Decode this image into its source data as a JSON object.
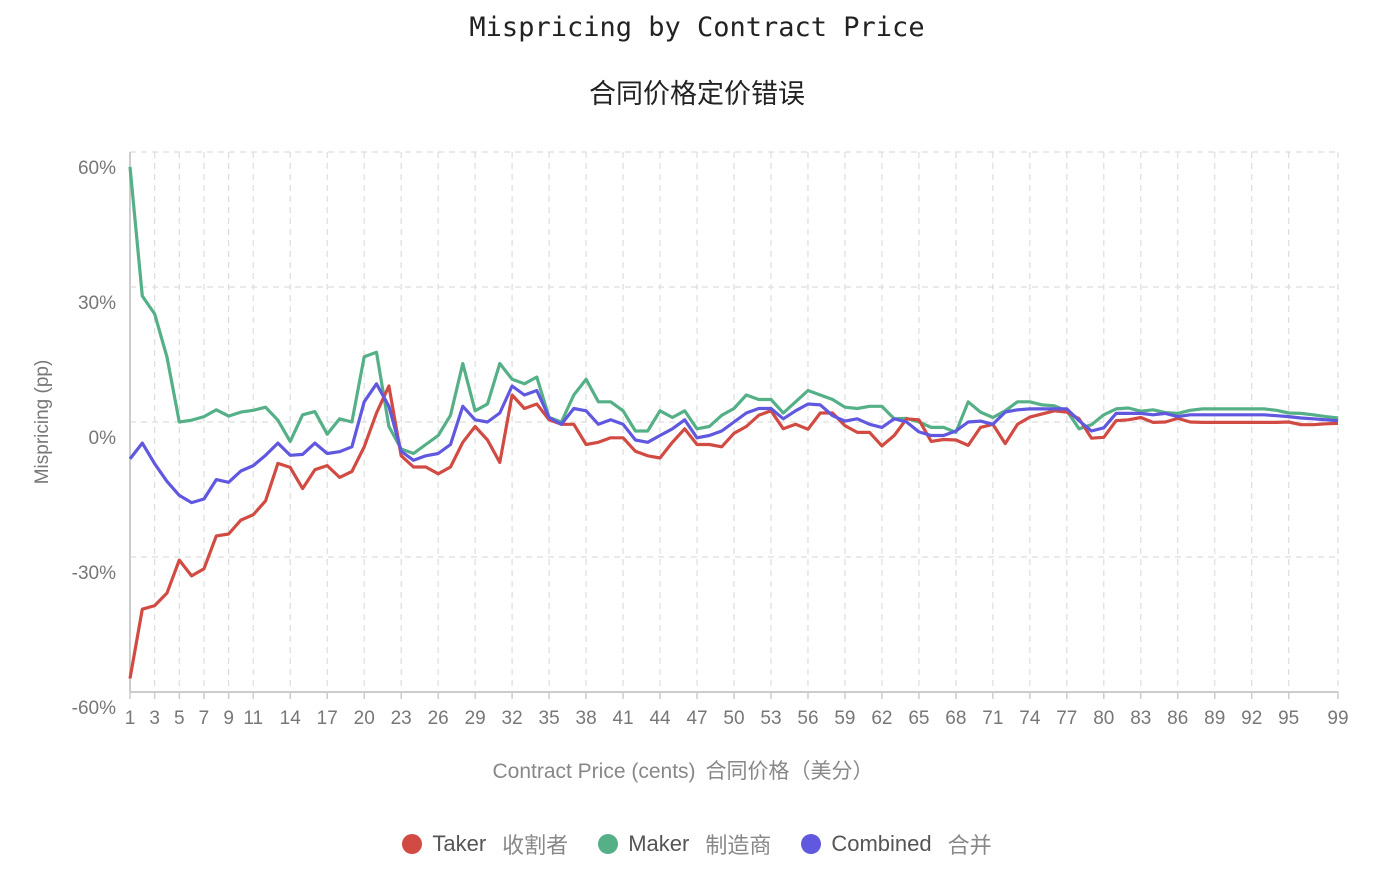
{
  "chart_data": {
    "type": "line",
    "title": "Mispricing by Contract Price",
    "subtitle": "合同价格定价错误",
    "xlabel": "Contract Price (cents)",
    "xlabel_zh": "合同价格（美分）",
    "ylabel": "Mispricing (pp)",
    "ylim": [
      -60,
      60
    ],
    "xlim": [
      1,
      99
    ],
    "grid": true,
    "legend_placement": "bottom",
    "y_ticks": [
      60,
      30,
      0,
      -30,
      -60
    ],
    "y_tick_labels": [
      "60%",
      "30%",
      "0%",
      "-30%",
      "-60%"
    ],
    "x_ticks": [
      1,
      3,
      5,
      7,
      9,
      11,
      14,
      17,
      20,
      23,
      26,
      29,
      32,
      35,
      38,
      41,
      44,
      47,
      50,
      53,
      56,
      59,
      62,
      65,
      68,
      71,
      74,
      77,
      80,
      83,
      86,
      89,
      92,
      95,
      99
    ],
    "x_start": 1,
    "series": [
      {
        "name": "Taker",
        "name_zh": "收割者",
        "color": "#d14b43",
        "values": [
          -57,
          -41.6,
          -40.8,
          -38,
          -30.7,
          -34.2,
          -32.6,
          -25.3,
          -24.9,
          -21.8,
          -20.6,
          -17.5,
          -9.2,
          -10.1,
          -14.8,
          -10.6,
          -9.7,
          -12.3,
          -11,
          -5.5,
          2,
          8,
          -7.5,
          -10,
          -10,
          -11.5,
          -10,
          -4.5,
          -1,
          -4,
          -9,
          6,
          3,
          4,
          0.5,
          -0.5,
          -0.5,
          -5,
          -4.5,
          -3.5,
          -3.5,
          -6.5,
          -7.5,
          -8,
          -4.5,
          -1.5,
          -5,
          -5,
          -5.5,
          -2.5,
          -1,
          1.5,
          2.5,
          -1.5,
          -0.5,
          -1.6,
          2,
          2,
          -0.8,
          -2.3,
          -2.3,
          -5.3,
          -3,
          0.7,
          0.5,
          -4.3,
          -3.9,
          -4,
          -5.2,
          -1.2,
          -0.5,
          -4.8,
          -0.5,
          1.1,
          1.8,
          2.5,
          2.2,
          0.7,
          -3.6,
          -3.4,
          0.3,
          0.5,
          1,
          -0.1,
          0,
          0.8,
          0,
          -0.1,
          -0.1,
          -0.1,
          -0.1,
          -0.1,
          -0.1,
          -0.1,
          0,
          -0.6,
          -0.6,
          -0.4,
          -0.3
        ]
      },
      {
        "name": "Maker",
        "name_zh": "制造商",
        "color": "#55b087",
        "values": [
          56.7,
          28,
          24,
          14.4,
          0,
          0.4,
          1.2,
          2.7,
          1.3,
          2.2,
          2.6,
          3.3,
          0.4,
          -4.3,
          1.6,
          2.3,
          -2.7,
          0.7,
          0,
          14.5,
          15.5,
          -1,
          -6,
          -7,
          -5,
          -3,
          1.5,
          13,
          2.5,
          4,
          13,
          9.5,
          8.5,
          10,
          1,
          0,
          6,
          9.5,
          4.5,
          4.5,
          2.5,
          -2,
          -2,
          2.5,
          1,
          2.5,
          -1.5,
          -1,
          1.5,
          3,
          6,
          5,
          5,
          2,
          4.5,
          7,
          6,
          5,
          3.3,
          3,
          3.5,
          3.5,
          0.7,
          0.8,
          0,
          -1.2,
          -1.2,
          -2.3,
          4.5,
          2.2,
          1,
          2.5,
          4.5,
          4.5,
          3.8,
          3.6,
          2.5,
          -1.5,
          -0.6,
          1.6,
          2.9,
          3.1,
          2.4,
          2.7,
          2.1,
          1.9,
          2.6,
          2.9,
          2.9,
          2.9,
          2.9,
          2.9,
          2.9,
          2.6,
          2,
          1.9,
          1.6,
          1.2,
          0.9
        ]
      },
      {
        "name": "Combined",
        "name_zh": "合并",
        "color": "#6158e0",
        "values": [
          -8.2,
          -4.7,
          -9.3,
          -13.2,
          -16.3,
          -17.9,
          -17.1,
          -12.8,
          -13.4,
          -10.9,
          -9.7,
          -7.4,
          -4.7,
          -7.4,
          -7.2,
          -4.7,
          -7,
          -6.6,
          -5.5,
          4.5,
          8.5,
          3.5,
          -6.5,
          -8.5,
          -7.5,
          -7,
          -5,
          3.5,
          0.5,
          0,
          2,
          8,
          6,
          7,
          1,
          -0.5,
          3,
          2.5,
          -0.5,
          0.5,
          -0.5,
          -4,
          -4.5,
          -3,
          -1.5,
          0.5,
          -3.5,
          -3,
          -2,
          0,
          2,
          3,
          3,
          0.7,
          2.5,
          4,
          3.8,
          1.4,
          0.2,
          0.7,
          -0.5,
          -1.2,
          0.7,
          0,
          -2.2,
          -3,
          -3,
          -2,
          0,
          0.2,
          -0.5,
          2.2,
          2.7,
          2.9,
          2.9,
          2.9,
          2.9,
          0.3,
          -2,
          -1.3,
          1.9,
          1.9,
          1.9,
          1.6,
          1.9,
          1.2,
          1.6,
          1.6,
          1.6,
          1.6,
          1.6,
          1.6,
          1.6,
          1.4,
          1.2,
          0.9,
          0.7,
          0.5,
          0.3
        ]
      }
    ]
  }
}
